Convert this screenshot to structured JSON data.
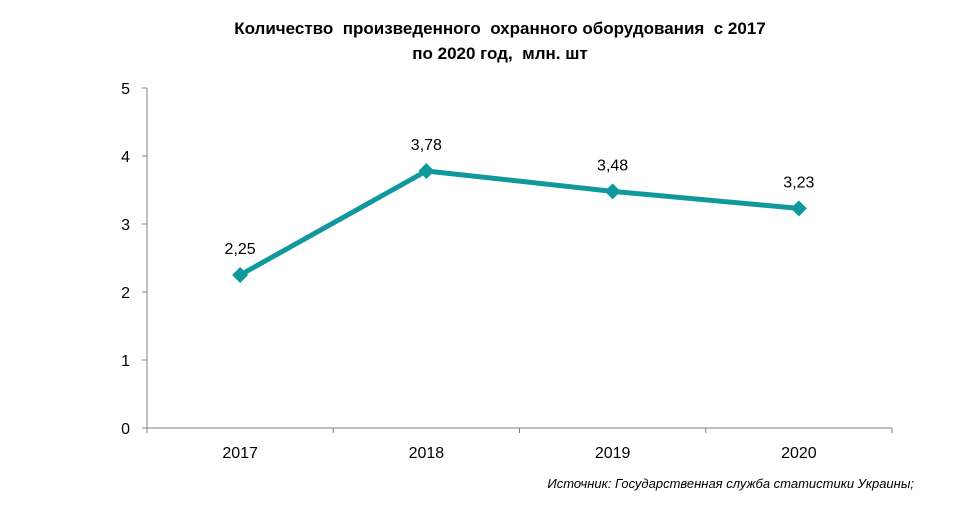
{
  "chart_data": {
    "type": "line",
    "title_lines": [
      "Количество  произведенного  охранного оборудования  с 2017",
      "по 2020 год,  млн. шт"
    ],
    "categories": [
      "2017",
      "2018",
      "2019",
      "2020"
    ],
    "series": [
      {
        "values": [
          2.25,
          3.78,
          3.48,
          3.23
        ],
        "labels": [
          "2,25",
          "3,78",
          "3,48",
          "3,23"
        ]
      }
    ],
    "ylim": [
      0,
      5
    ],
    "yticks": [
      "0",
      "1",
      "2",
      "3",
      "4",
      "5"
    ],
    "grid": false,
    "legend": "none",
    "line_color": "#10999C",
    "axis_color": "#808080"
  },
  "source_note": "Источник: Государственная служба статистики Украины;"
}
